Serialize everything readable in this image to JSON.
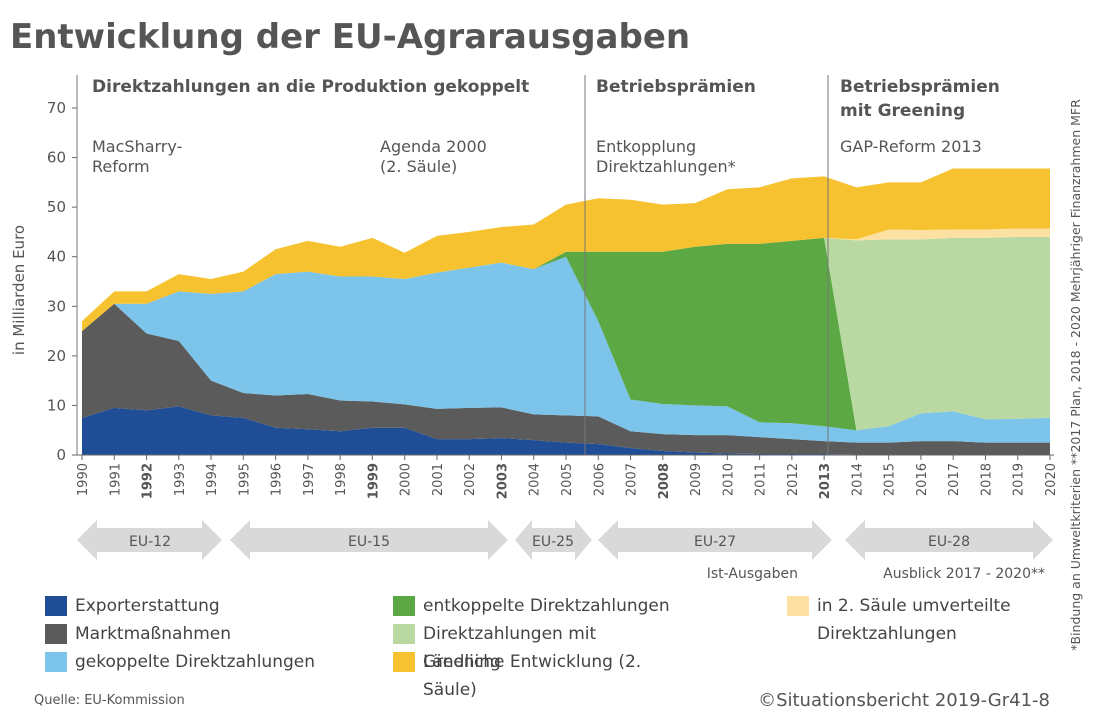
{
  "chart_data": {
    "type": "stacked_area",
    "title": "Entwicklung der EU-Agrarausgaben",
    "y_label": "in Milliarden Euro",
    "categories": [
      "1990",
      "1991",
      "1992",
      "1993",
      "1994",
      "1995",
      "1996",
      "1997",
      "1998",
      "1999",
      "2000",
      "2001",
      "2002",
      "2003",
      "2004",
      "2005",
      "2006",
      "2007",
      "2008",
      "2009",
      "2010",
      "2011",
      "2012",
      "2013",
      "2014",
      "2015",
      "2016",
      "2017",
      "2018",
      "2019",
      "2020"
    ],
    "emphasized_categories": [
      "1992",
      "1999",
      "2003",
      "2008",
      "2013"
    ],
    "ylim": [
      0,
      70
    ],
    "yticks": [
      0,
      10,
      20,
      30,
      40,
      50,
      60,
      70
    ],
    "series": [
      {
        "name": "Exporterstattung",
        "color": "#1f4e96",
        "values": [
          7.5,
          9.5,
          9,
          9.8,
          8,
          7.5,
          5.5,
          5.2,
          4.8,
          5.5,
          5.5,
          3.2,
          3.2,
          3.4,
          3,
          2.5,
          2.2,
          1.4,
          0.8,
          0.5,
          0.3,
          0.2,
          0.2,
          0.2,
          0.1,
          0.1,
          0.1,
          0.1,
          0.1,
          0.1,
          0.1
        ]
      },
      {
        "name": "Marktmaßnahmen",
        "color": "#5b5b5b",
        "values": [
          17.5,
          21,
          15.5,
          13.2,
          7,
          5,
          6.5,
          7.1,
          6.2,
          5.3,
          4.7,
          6.1,
          6.3,
          6.2,
          5.2,
          5.5,
          5.6,
          3.4,
          3.4,
          3.5,
          3.7,
          3.4,
          3,
          2.6,
          2.4,
          2.4,
          2.7,
          2.7,
          2.4,
          2.4,
          2.4
        ]
      },
      {
        "name": "gekoppelte Direktzahlungen",
        "color": "#7cc4ea",
        "values": [
          0,
          0,
          6,
          10,
          17.5,
          20.5,
          24.5,
          24.7,
          25,
          25.2,
          25.3,
          27.5,
          28.3,
          29.2,
          29.3,
          32,
          19.2,
          6.4,
          6.1,
          6,
          5.8,
          3,
          3.2,
          3,
          2.5,
          3.3,
          5.6,
          6,
          4.7,
          4.8,
          5
        ]
      },
      {
        "name": "entkoppelte Direktzahlungen",
        "color": "#5ba845",
        "values": [
          0,
          0,
          0,
          0,
          0,
          0,
          0,
          0,
          0,
          0,
          0,
          0,
          0,
          0,
          0,
          1,
          14,
          29.8,
          30.7,
          32,
          32.8,
          36,
          36.8,
          38,
          0,
          0,
          0,
          0,
          0,
          0,
          0
        ]
      },
      {
        "name": "Direktzahlungen mit Greening",
        "color": "#bad9a2",
        "values": [
          0,
          0,
          0,
          0,
          0,
          0,
          0,
          0,
          0,
          0,
          0,
          0,
          0,
          0,
          0,
          0,
          0,
          0,
          0,
          0,
          0,
          0,
          0,
          0,
          38.3,
          37.7,
          35.1,
          35,
          36.6,
          36.7,
          36.5
        ]
      },
      {
        "name": "in 2. Säule umverteilte Direktzahlungen",
        "color": "#fce1a2",
        "values": [
          0,
          0,
          0,
          0,
          0,
          0,
          0,
          0,
          0,
          0,
          0,
          0,
          0,
          0,
          0,
          0,
          0,
          0,
          0,
          0,
          0,
          0,
          0,
          0,
          0.2,
          2,
          1.9,
          1.7,
          1.7,
          1.7,
          1.7
        ]
      },
      {
        "name": "Ländliche Entwicklung (2. Säule)",
        "color": "#f7c230",
        "values": [
          2,
          2.5,
          2.5,
          3.5,
          3,
          4,
          5,
          6.2,
          6,
          7.8,
          5.3,
          7.4,
          7.2,
          7.2,
          9,
          9.5,
          10.8,
          10.5,
          9.5,
          8.8,
          11,
          11.4,
          12.6,
          12.4,
          10.5,
          9.5,
          9.6,
          12.3,
          12.3,
          12.1,
          12.1
        ]
      }
    ],
    "periods": [
      {
        "lines": [
          "Direktzahlungen an die Produktion gekoppelt"
        ]
      },
      {
        "lines": [
          "Betriebsprämien"
        ]
      },
      {
        "lines": [
          "Betriebsprämien",
          "mit Greening"
        ]
      }
    ],
    "annotations": [
      {
        "lines": [
          "MacSharry-",
          "Reform"
        ]
      },
      {
        "lines": [
          "Agenda 2000",
          "(2. Säule)"
        ]
      },
      {
        "lines": [
          "Entkopplung",
          "Direktzahlungen*"
        ]
      },
      {
        "lines": [
          "GAP-Reform 2013"
        ]
      }
    ],
    "enlargements": [
      "EU-12",
      "EU-15",
      "EU-25",
      "EU-27",
      "EU-28"
    ],
    "phase_notes": [
      "Ist-Ausgaben",
      "Ausblick 2017 - 2020**"
    ],
    "source": "Quelle: EU-Kommission",
    "credit": "©Situationsbericht 2019-Gr41-8",
    "side_note": "*Bindung an Umweltkriterien **2017 Plan, 2018 - 2020 Mehrjähriger Finanzrahmen MFR"
  }
}
